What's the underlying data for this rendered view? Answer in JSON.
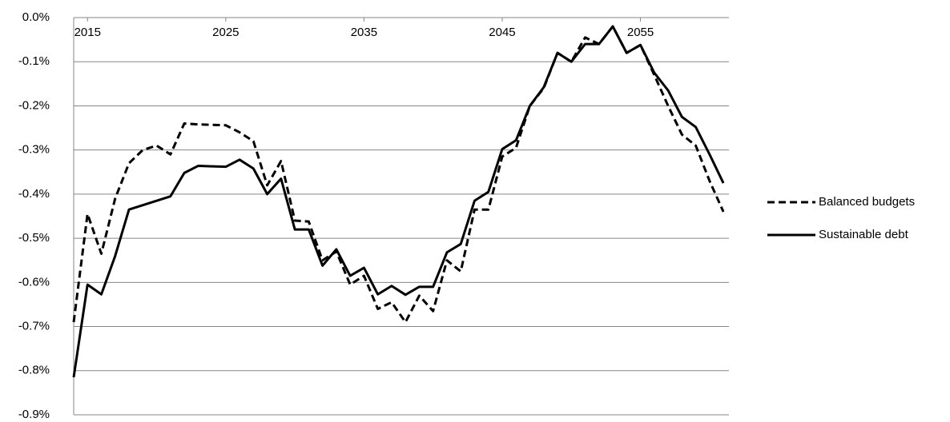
{
  "chart_data": {
    "type": "line",
    "x": [
      2014,
      2015,
      2016,
      2017,
      2018,
      2019,
      2020,
      2021,
      2022,
      2023,
      2024,
      2025,
      2026,
      2027,
      2028,
      2029,
      2030,
      2031,
      2032,
      2033,
      2034,
      2035,
      2036,
      2037,
      2038,
      2039,
      2040,
      2041,
      2042,
      2043,
      2044,
      2045,
      2046,
      2047,
      2048,
      2049,
      2050,
      2051,
      2052,
      2053,
      2054,
      2055,
      2056,
      2057,
      2058,
      2059,
      2060,
      2061
    ],
    "series": [
      {
        "name": "Balanced budgets",
        "color": "#000000",
        "line_style": "dashed",
        "values": [
          -0.69,
          -0.445,
          -0.535,
          -0.41,
          -0.33,
          -0.3,
          -0.29,
          -0.31,
          -0.24,
          -0.242,
          -0.243,
          -0.244,
          -0.26,
          -0.28,
          -0.38,
          -0.325,
          -0.46,
          -0.462,
          -0.55,
          -0.53,
          -0.605,
          -0.585,
          -0.66,
          -0.645,
          -0.69,
          -0.63,
          -0.665,
          -0.55,
          -0.575,
          -0.435,
          -0.435,
          -0.315,
          -0.295,
          -0.2,
          -0.16,
          -0.08,
          -0.1,
          -0.045,
          -0.06,
          -0.02,
          -0.08,
          -0.062,
          -0.13,
          -0.2,
          -0.265,
          -0.29,
          -0.37,
          -0.44
        ]
      },
      {
        "name": "Sustainable debt",
        "color": "#000000",
        "line_style": "solid",
        "values": [
          -0.815,
          -0.605,
          -0.627,
          -0.54,
          -0.435,
          -0.425,
          -0.415,
          -0.405,
          -0.352,
          -0.336,
          -0.337,
          -0.338,
          -0.322,
          -0.342,
          -0.4,
          -0.365,
          -0.48,
          -0.48,
          -0.562,
          -0.525,
          -0.585,
          -0.567,
          -0.627,
          -0.608,
          -0.628,
          -0.61,
          -0.61,
          -0.532,
          -0.513,
          -0.415,
          -0.395,
          -0.298,
          -0.278,
          -0.2,
          -0.158,
          -0.08,
          -0.1,
          -0.06,
          -0.06,
          -0.02,
          -0.08,
          -0.062,
          -0.125,
          -0.165,
          -0.225,
          -0.248,
          -0.31,
          -0.375
        ]
      }
    ],
    "xlim": [
      2014,
      2061.4
    ],
    "xticks": [
      2015,
      2025,
      2035,
      2045,
      2055
    ],
    "ylim": [
      -0.9,
      0
    ],
    "yticks": [
      {
        "value": 0,
        "label": "0.0%"
      },
      {
        "value": -0.1,
        "label": "-0.1%"
      },
      {
        "value": -0.2,
        "label": "-0.2%"
      },
      {
        "value": -0.3,
        "label": "-0.3%"
      },
      {
        "value": -0.4,
        "label": "-0.4%"
      },
      {
        "value": -0.5,
        "label": "-0.5%"
      },
      {
        "value": -0.6,
        "label": "-0.6%"
      },
      {
        "value": -0.7,
        "label": "-0.7%"
      },
      {
        "value": -0.8,
        "label": "-0.8%"
      },
      {
        "value": -0.9,
        "label": "-0.9%"
      }
    ],
    "grid": true,
    "legend": "right"
  }
}
